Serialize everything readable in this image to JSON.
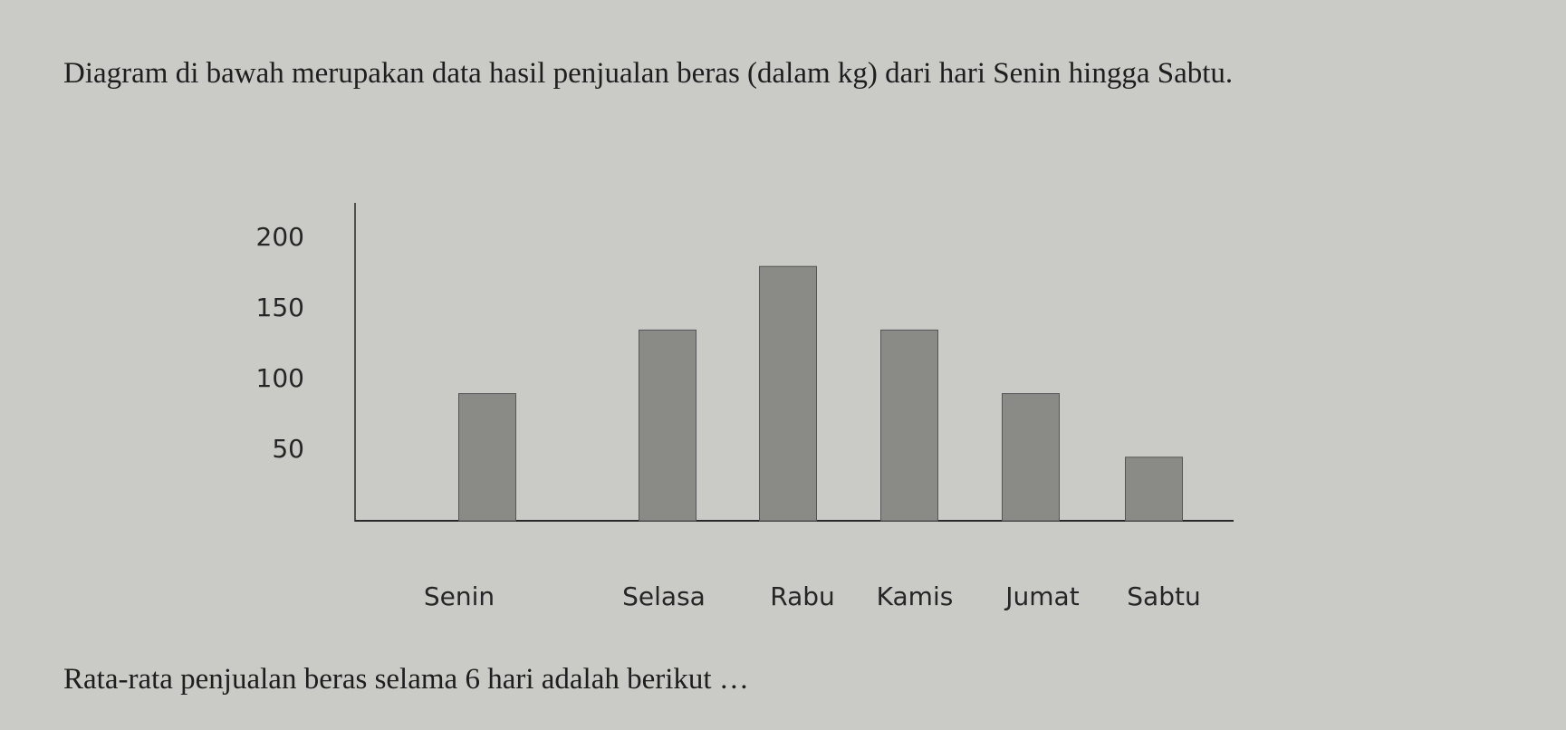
{
  "intro": "Diagram di bawah merupakan data hasil penjualan beras (dalam kg) dari hari Senin hingga Sabtu.",
  "chart_data": {
    "type": "bar",
    "categories": [
      "Senin",
      "Selasa",
      "Rabu",
      "Kamis",
      "Jumat",
      "Sabtu"
    ],
    "values": [
      90,
      135,
      180,
      135,
      90,
      45
    ],
    "color": "#8a8a87",
    "ylim": [
      0,
      225
    ],
    "yticks": [
      50,
      100,
      150,
      200
    ],
    "grid": false
  },
  "question": "Rata-rata penjualan beras selama 6 hari adalah berikut …"
}
